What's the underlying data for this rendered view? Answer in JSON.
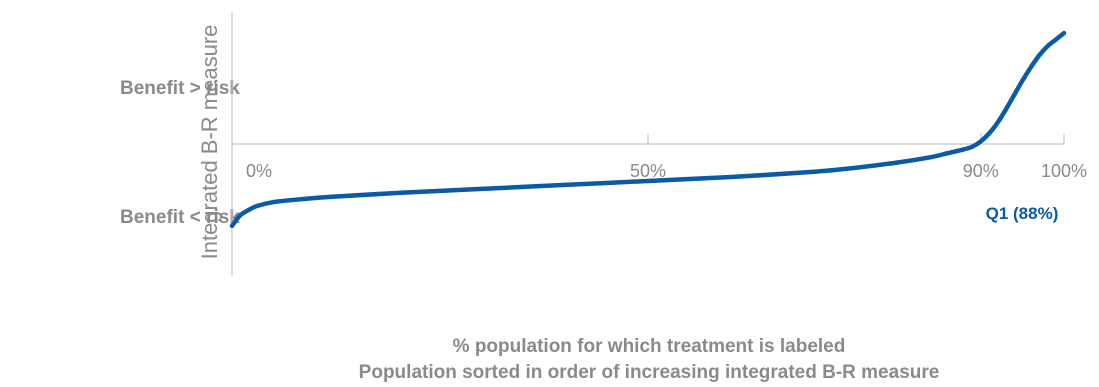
{
  "chart_data": {
    "type": "line",
    "y_side_labels": {
      "top": "Benefit > risk",
      "bottom": "Benefit < risk"
    },
    "ylabel": "Integrated B-R measure",
    "xlabel": "% population for which treatment is labeled",
    "xlabel_sub": "Population sorted in order of increasing integrated B-R measure",
    "xlim": [
      0,
      100
    ],
    "ylim": [
      -1.0,
      1.0
    ],
    "x_ticks": [
      {
        "value": 0,
        "label": "0%"
      },
      {
        "value": 50,
        "label": "50%"
      },
      {
        "value": 90,
        "label": "90%"
      },
      {
        "value": 100,
        "label": "100%"
      }
    ],
    "annotation": {
      "text": "Q1 (88%)",
      "x": 88
    },
    "series": [
      {
        "color": "#0a5aa6",
        "x": [
          0,
          1,
          2,
          3,
          5,
          8,
          12,
          20,
          30,
          40,
          50,
          60,
          70,
          75,
          80,
          84,
          86,
          88,
          89,
          90,
          91,
          92,
          93,
          94,
          95,
          96,
          97,
          98,
          99,
          100
        ],
        "y": [
          -0.62,
          -0.54,
          -0.5,
          -0.47,
          -0.44,
          -0.42,
          -0.4,
          -0.37,
          -0.34,
          -0.31,
          -0.28,
          -0.25,
          -0.21,
          -0.18,
          -0.14,
          -0.1,
          -0.07,
          -0.04,
          -0.02,
          0.02,
          0.08,
          0.16,
          0.26,
          0.37,
          0.48,
          0.58,
          0.67,
          0.74,
          0.79,
          0.84
        ]
      }
    ]
  }
}
